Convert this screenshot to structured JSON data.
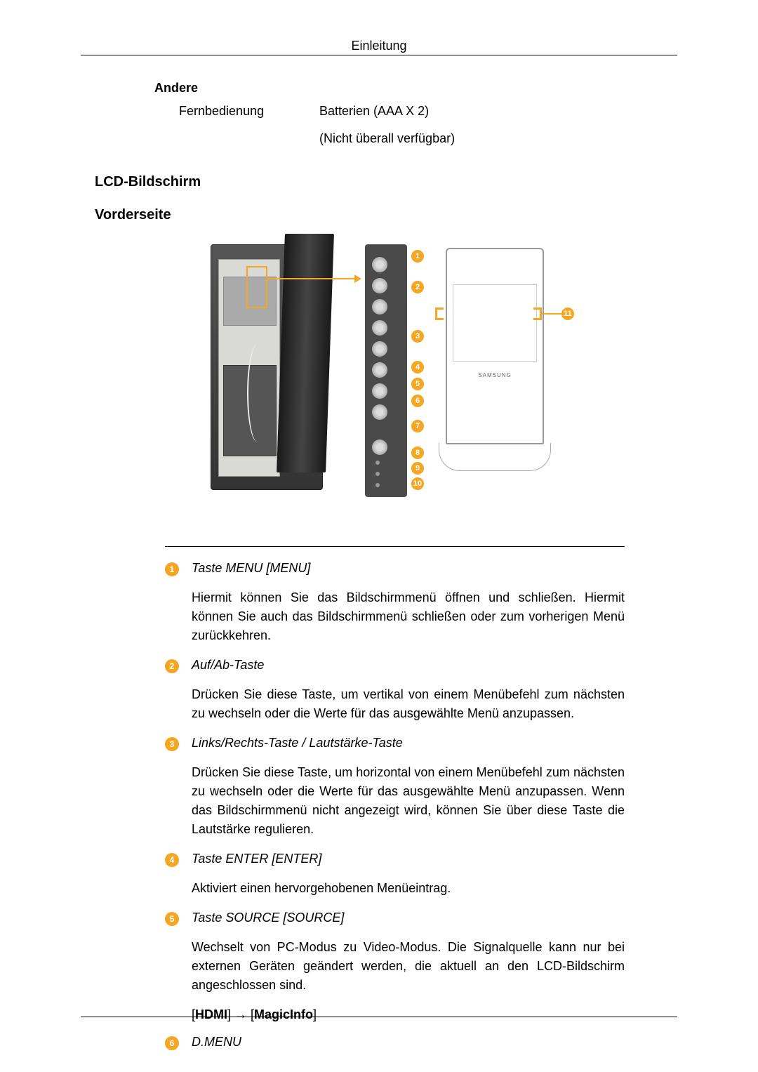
{
  "page_header": "Einleitung",
  "section_other": {
    "heading": "Andere",
    "col1": "Fernbedienung",
    "col2": "Batterien (AAA X 2)",
    "sub": "(Nicht überall verfügbar)"
  },
  "heading_lcd": "LCD-Bildschirm",
  "heading_front": "Vorderseite",
  "diagram": {
    "logo": "SAMSUNG",
    "callout_color": "#f5a623",
    "callouts": [
      1,
      2,
      3,
      4,
      5,
      6,
      7,
      8,
      9,
      10,
      11
    ]
  },
  "items": [
    {
      "num": "1",
      "title": "Taste MENU [MENU]",
      "body": "Hiermit können Sie das Bildschirmmenü öffnen und schließen. Hiermit können Sie auch das Bildschirmmenü schließen oder zum vorherigen Menü zurückkehren."
    },
    {
      "num": "2",
      "title": "Auf/Ab-Taste",
      "body": "Drücken Sie diese Taste, um vertikal von einem Menübefehl zum nächsten zu wechseln oder die Werte für das ausgewählte Menü anzupassen."
    },
    {
      "num": "3",
      "title": "Links/Rechts-Taste / Lautstärke-Taste",
      "body": "Drücken Sie diese Taste, um horizontal von einem Menübefehl zum nächsten zu wechseln oder die Werte für das ausgewählte Menü anzupassen. Wenn das Bildschirmmenü nicht angezeigt wird, können Sie über diese Taste die Lautstärke regulieren."
    },
    {
      "num": "4",
      "title": "Taste ENTER [ENTER]",
      "body": "Aktiviert einen hervorgehobenen Menüeintrag."
    },
    {
      "num": "5",
      "title": "Taste SOURCE [SOURCE]",
      "body": "Wechselt von PC-Modus zu Video-Modus. Die Signalquelle kann nur bei externen Geräten geändert werden, die aktuell an den LCD-Bildschirm angeschlossen sind.",
      "extra_parts": [
        "[",
        "HDMI",
        "] → [",
        "MagicInfo",
        "]"
      ]
    },
    {
      "num": "6",
      "title": "D.MENU",
      "body": ""
    }
  ]
}
